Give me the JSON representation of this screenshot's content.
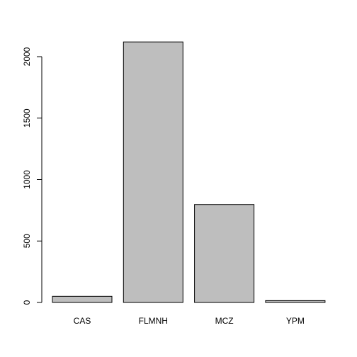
{
  "chart_data": {
    "type": "bar",
    "title": "",
    "xlabel": "",
    "ylabel": "",
    "categories": [
      "CAS",
      "FLMNH",
      "MCZ",
      "YPM"
    ],
    "values": [
      50,
      2120,
      797,
      15
    ],
    "ylim": [
      0,
      2200
    ],
    "yticks": [
      0,
      500,
      1000,
      1500,
      2000
    ],
    "grid": false,
    "legend": "none",
    "bar_color": "#bebebe",
    "border_color": "#000000"
  }
}
